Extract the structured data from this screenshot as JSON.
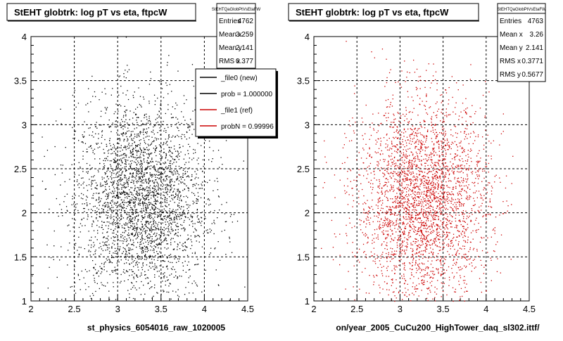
{
  "footer_text": "",
  "chart_data": [
    {
      "type": "scatter",
      "title": "StEHT globtrk: log pT vs eta, ftpcW",
      "xlabel": "st_physics_6054016_raw_1020005",
      "ylabel": "",
      "xlim": [
        2,
        4.5
      ],
      "ylim": [
        1,
        4
      ],
      "xticks": [
        "2",
        "2.5",
        "3",
        "3.5",
        "4",
        "4.5"
      ],
      "yticks": [
        "1",
        "1.5",
        "2",
        "2.5",
        "3",
        "3.5",
        "4"
      ],
      "grid": true,
      "marker_color": "#000000",
      "distribution": {
        "mean_x": 3.259,
        "mean_y": 2.141,
        "rms_x": 0.377,
        "rms_y": 0.567,
        "entries": 4762
      },
      "stats": {
        "header": "StEHTQaGlobPtVsEtaFW",
        "rows": [
          {
            "label": "Entries",
            "value": "4762"
          },
          {
            "label": "Mean x",
            "value": "3.259"
          },
          {
            "label": "Mean y",
            "value": "2.141"
          },
          {
            "label": "RMS x",
            "value": "0.377"
          }
        ]
      },
      "legend": {
        "placement": "top-right",
        "entries": [
          {
            "label": "_file0 (new)",
            "color": "#000000"
          },
          {
            "label": "prob = 1.000000",
            "color": "#000000"
          },
          {
            "label": "_file1 (ref)",
            "color": "#cc0000"
          },
          {
            "label": "probN = 0.99996",
            "color": "#cc0000"
          }
        ]
      }
    },
    {
      "type": "scatter",
      "title": "StEHT globtrk: log pT vs eta, ftpcW",
      "xlabel": "on/year_2005_CuCu200_HighTower_daq_sl302.ittf/",
      "ylabel": "",
      "xlim": [
        2,
        4.5
      ],
      "ylim": [
        1,
        4
      ],
      "xticks": [
        "2",
        "2.5",
        "3",
        "3.5",
        "4",
        "4.5"
      ],
      "yticks": [
        "1",
        "1.5",
        "2",
        "2.5",
        "3",
        "3.5",
        "4"
      ],
      "grid": true,
      "marker_color": "#cc0000",
      "distribution": {
        "mean_x": 3.26,
        "mean_y": 2.141,
        "rms_x": 0.3771,
        "rms_y": 0.5677,
        "entries": 4763
      },
      "stats": {
        "header": "StEHTQaGlobPtVsEtaFW",
        "rows": [
          {
            "label": "Entries",
            "value": "4763"
          },
          {
            "label": "Mean x",
            "value": "3.26"
          },
          {
            "label": "Mean y",
            "value": "2.141"
          },
          {
            "label": "RMS x",
            "value": "0.3771"
          },
          {
            "label": "RMS y",
            "value": "0.5677"
          }
        ]
      }
    }
  ]
}
